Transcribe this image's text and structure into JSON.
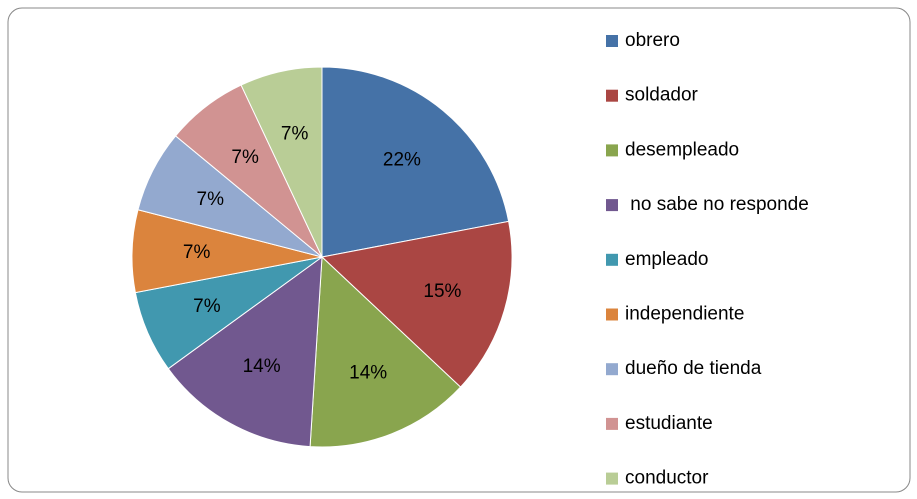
{
  "chart_data": {
    "type": "pie",
    "categories": [
      "obrero",
      "soldador",
      "desempleado",
      " no sabe no responde",
      "empleado",
      "independiente",
      "dueño de tienda",
      "estudiante",
      "conductor"
    ],
    "values": [
      22,
      15,
      14,
      14,
      7,
      7,
      7,
      7,
      7
    ],
    "value_labels": [
      "22%",
      "15%",
      "14%",
      "14%",
      "7%",
      "7%",
      "7%",
      "7%",
      "7%"
    ],
    "colors": [
      "#4572A7",
      "#AA4643",
      "#89A54E",
      "#71588F",
      "#4198AF",
      "#DB843D",
      "#93A9CF",
      "#D19392",
      "#B9CD96"
    ],
    "legend": "right"
  }
}
